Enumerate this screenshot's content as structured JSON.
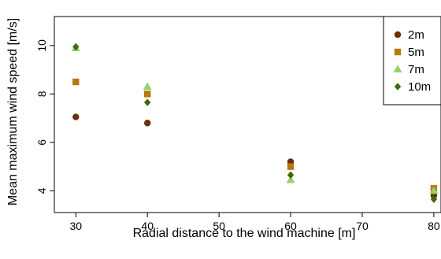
{
  "chart_data": {
    "type": "scatter",
    "xlabel": "Radial distance to the wind machine [m]",
    "ylabel": "Mean maximum wind speed [m/s]",
    "xlim": [
      27,
      81
    ],
    "ylim": [
      3.1,
      11.2
    ],
    "xticks": [
      "30",
      "40",
      "50",
      "60",
      "70",
      "80"
    ],
    "yticks": [
      "4",
      "6",
      "8",
      "10"
    ],
    "legend_position": "top-right",
    "series": [
      {
        "name": "2m",
        "marker": "circle",
        "color": "#6b2f0c",
        "points": [
          {
            "x": 30,
            "y": 7.05
          },
          {
            "x": 40,
            "y": 6.8
          },
          {
            "x": 60,
            "y": 5.2
          },
          {
            "x": 80,
            "y": 3.8
          }
        ]
      },
      {
        "name": "5m",
        "marker": "square",
        "color": "#b8780e",
        "points": [
          {
            "x": 30,
            "y": 8.5
          },
          {
            "x": 40,
            "y": 8.0
          },
          {
            "x": 60,
            "y": 5.0
          },
          {
            "x": 80,
            "y": 4.1
          }
        ]
      },
      {
        "name": "7m",
        "marker": "triangle",
        "color": "#94d26a",
        "points": [
          {
            "x": 30,
            "y": 9.9
          },
          {
            "x": 40,
            "y": 8.3
          },
          {
            "x": 60,
            "y": 4.45
          },
          {
            "x": 80,
            "y": 4.0
          }
        ]
      },
      {
        "name": "10m",
        "marker": "diamond",
        "color": "#3f6a12",
        "points": [
          {
            "x": 30,
            "y": 9.95
          },
          {
            "x": 40,
            "y": 7.65
          },
          {
            "x": 60,
            "y": 4.65
          },
          {
            "x": 80,
            "y": 3.65
          }
        ]
      }
    ]
  }
}
